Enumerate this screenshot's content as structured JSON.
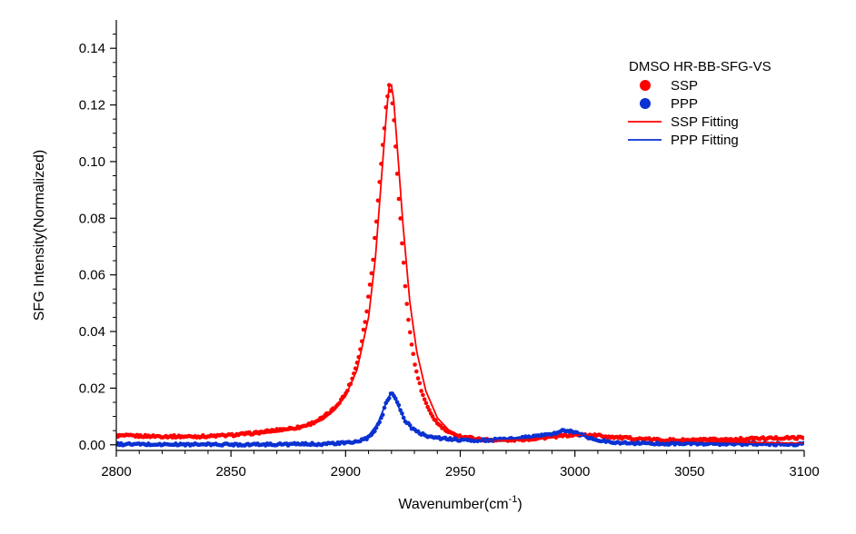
{
  "chart_data": {
    "type": "scatter",
    "title": "",
    "xlabel": "Wavenumber(cm",
    "xlabel_superscript": "-1",
    "xlabel_suffix": ")",
    "ylabel": "SFG Intensity(Normalized)",
    "xlim": [
      2800,
      3100
    ],
    "ylim": [
      -0.002,
      0.15
    ],
    "x_ticks": [
      2800,
      2850,
      2900,
      2950,
      3000,
      3050,
      3100
    ],
    "x_tick_labels": [
      "2800",
      "2850",
      "2900",
      "2950",
      "3000",
      "3050",
      "3100"
    ],
    "y_ticks": [
      0.0,
      0.02,
      0.04,
      0.06,
      0.08,
      0.1,
      0.12,
      0.14
    ],
    "y_tick_labels": [
      "0.00",
      "0.02",
      "0.04",
      "0.06",
      "0.08",
      "0.10",
      "0.12",
      "0.14"
    ],
    "grid": false,
    "legend_placement": "top-right",
    "legend_title": "DMSO HR-BB-SFG-VS",
    "series": [
      {
        "name": "SSP",
        "kind": "points",
        "color": "#ff0000",
        "x": [
          2800,
          2810,
          2820,
          2830,
          2840,
          2850,
          2860,
          2870,
          2875,
          2880,
          2885,
          2890,
          2895,
          2900,
          2903,
          2906,
          2909,
          2912,
          2914,
          2916,
          2918,
          2919,
          2920,
          2921,
          2922,
          2924,
          2926,
          2928,
          2930,
          2933,
          2936,
          2940,
          2945,
          2950,
          2960,
          2970,
          2980,
          2990,
          3000,
          3010,
          3020,
          3030,
          3040,
          3050,
          3060,
          3070,
          3080,
          3090,
          3100
        ],
        "y": [
          0.0032,
          0.0031,
          0.003,
          0.0029,
          0.003,
          0.0034,
          0.0041,
          0.0052,
          0.0057,
          0.0062,
          0.0075,
          0.0095,
          0.0128,
          0.018,
          0.0235,
          0.032,
          0.046,
          0.066,
          0.085,
          0.105,
          0.122,
          0.1265,
          0.1245,
          0.116,
          0.102,
          0.078,
          0.056,
          0.04,
          0.029,
          0.019,
          0.0125,
          0.0075,
          0.0042,
          0.003,
          0.0018,
          0.0016,
          0.002,
          0.0028,
          0.0036,
          0.0033,
          0.0025,
          0.002,
          0.0017,
          0.0016,
          0.0018,
          0.002,
          0.0022,
          0.0024,
          0.0025
        ]
      },
      {
        "name": "PPP",
        "kind": "points",
        "color": "#0a32d2",
        "x": [
          2800,
          2820,
          2840,
          2860,
          2880,
          2890,
          2900,
          2905,
          2910,
          2913,
          2916,
          2918,
          2920,
          2922,
          2924,
          2926,
          2929,
          2932,
          2936,
          2940,
          2950,
          2960,
          2970,
          2980,
          2985,
          2990,
          2993,
          2996,
          3000,
          3005,
          3010,
          3020,
          3030,
          3040,
          3050,
          3060,
          3070,
          3080,
          3090,
          3100
        ],
        "y": [
          0.0002,
          0.0001,
          0.0001,
          0.0001,
          0.0002,
          0.0003,
          0.0006,
          0.0011,
          0.0025,
          0.005,
          0.0105,
          0.0155,
          0.0183,
          0.0165,
          0.012,
          0.0085,
          0.0058,
          0.0042,
          0.0031,
          0.0024,
          0.0017,
          0.0016,
          0.0019,
          0.0027,
          0.0033,
          0.0038,
          0.0045,
          0.0051,
          0.0043,
          0.0028,
          0.0015,
          0.0007,
          0.0005,
          0.0004,
          0.0004,
          0.0003,
          0.0003,
          0.0003,
          0.0002,
          0.0002
        ]
      },
      {
        "name": "SSP Fitting",
        "kind": "line",
        "color": "#ff0000",
        "x": [
          2800,
          2820,
          2840,
          2860,
          2870,
          2880,
          2890,
          2895,
          2900,
          2905,
          2910,
          2913,
          2916,
          2918,
          2919,
          2920,
          2921,
          2923,
          2925,
          2928,
          2931,
          2935,
          2940,
          2945,
          2950,
          2960,
          2970,
          2980,
          2990,
          3000,
          3010,
          3020,
          3040,
          3060,
          3080,
          3100
        ],
        "y": [
          0.0031,
          0.003,
          0.0031,
          0.0037,
          0.0045,
          0.0058,
          0.0088,
          0.0121,
          0.0172,
          0.0265,
          0.045,
          0.066,
          0.098,
          0.119,
          0.1265,
          0.127,
          0.1215,
          0.1,
          0.078,
          0.0505,
          0.033,
          0.019,
          0.0095,
          0.0052,
          0.0032,
          0.0018,
          0.0015,
          0.0018,
          0.0025,
          0.0034,
          0.0034,
          0.0026,
          0.0017,
          0.0012,
          0.0008,
          0.0005
        ]
      },
      {
        "name": "PPP Fitting",
        "kind": "line",
        "color": "#0a32d2",
        "x": [
          2800,
          2850,
          2880,
          2900,
          2905,
          2910,
          2914,
          2917,
          2919,
          2920,
          2921,
          2923,
          2926,
          2929,
          2933,
          2938,
          2945,
          2955,
          2965,
          2975,
          2985,
          2990,
          2994,
          2997,
          3000,
          3004,
          3010,
          3020,
          3040,
          3070,
          3100
        ],
        "y": [
          0.0001,
          0.0001,
          0.0002,
          0.0006,
          0.0012,
          0.0032,
          0.0075,
          0.0135,
          0.0172,
          0.018,
          0.0175,
          0.0135,
          0.0085,
          0.0055,
          0.0035,
          0.0024,
          0.0018,
          0.0016,
          0.0019,
          0.0025,
          0.0034,
          0.0041,
          0.0048,
          0.0053,
          0.0047,
          0.0033,
          0.0018,
          0.0008,
          0.0004,
          0.0003,
          0.0002
        ]
      }
    ]
  }
}
